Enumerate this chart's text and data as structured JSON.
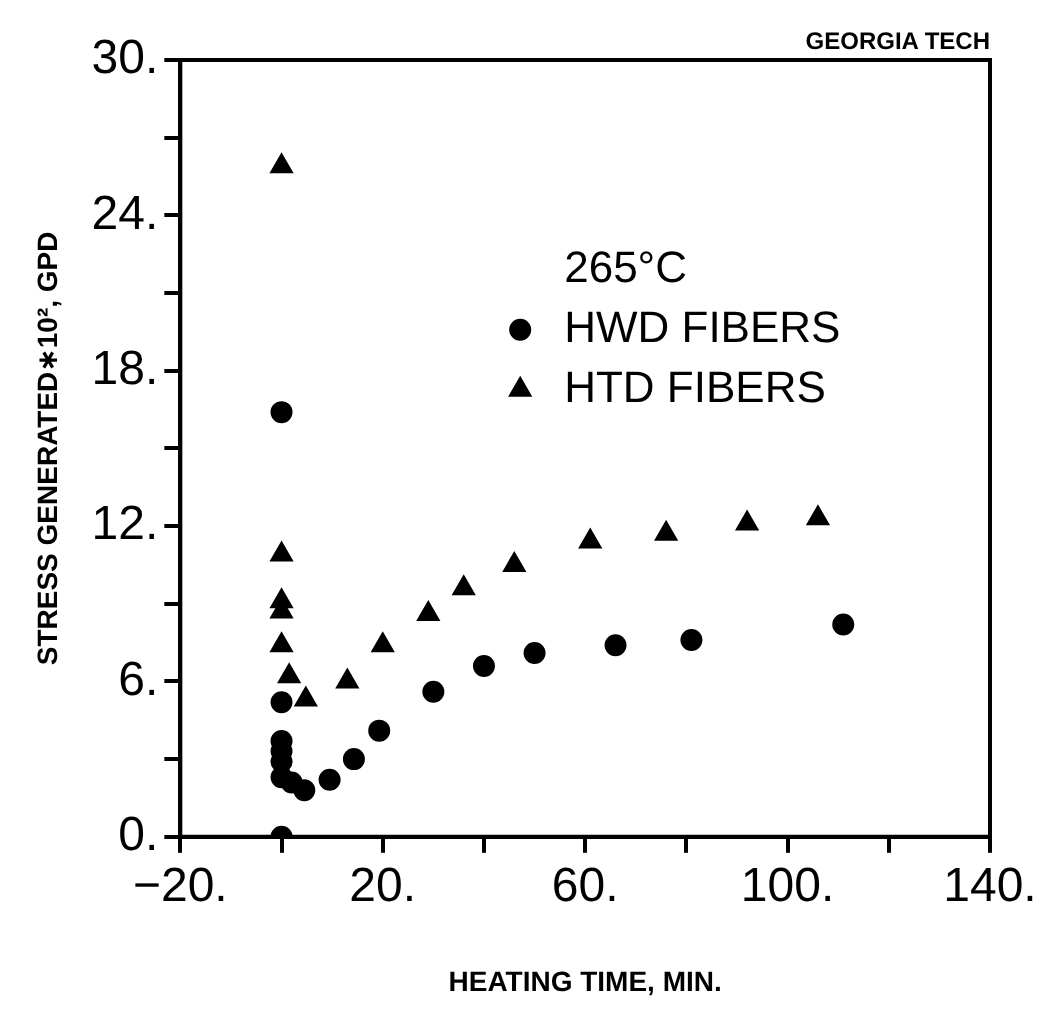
{
  "chart_data": {
    "type": "scatter",
    "xlabel": "HEATING TIME, MIN.",
    "ylabel": "STRESS GENERATED∗10², GPD",
    "legend_title": "265°C",
    "annotations": [
      "GEORGIA TECH"
    ],
    "xlim": [
      -20,
      140
    ],
    "ylim": [
      0,
      30
    ],
    "xticks": [
      {
        "value": -20,
        "label": "−20."
      },
      {
        "value": 0,
        "label": null
      },
      {
        "value": 20,
        "label": "20."
      },
      {
        "value": 40,
        "label": null
      },
      {
        "value": 60,
        "label": "60."
      },
      {
        "value": 80,
        "label": null
      },
      {
        "value": 100,
        "label": "100."
      },
      {
        "value": 120,
        "label": null
      },
      {
        "value": 140,
        "label": "140."
      }
    ],
    "yticks": [
      {
        "value": 0,
        "label": "0."
      },
      {
        "value": 3,
        "label": null
      },
      {
        "value": 6,
        "label": "6."
      },
      {
        "value": 9,
        "label": null
      },
      {
        "value": 12,
        "label": "12."
      },
      {
        "value": 15,
        "label": null
      },
      {
        "value": 18,
        "label": "18."
      },
      {
        "value": 21,
        "label": null
      },
      {
        "value": 24,
        "label": "24."
      },
      {
        "value": 27,
        "label": null
      },
      {
        "value": 30,
        "label": "30."
      }
    ],
    "grid": false,
    "legend": "top right",
    "series": [
      {
        "name": "HWD FIBERS",
        "color": "#000000",
        "marker": "circle",
        "x": [
          0,
          0,
          0,
          0,
          0,
          2,
          4.5,
          9.5,
          14.3,
          19.3,
          30,
          40,
          50,
          66,
          81,
          111
        ],
        "values": [
          5.2,
          3.7,
          3.3,
          2.9,
          2.3,
          2.1,
          1.8,
          2.2,
          3.0,
          4.1,
          5.6,
          6.6,
          7.1,
          7.4,
          7.6,
          8.2
        ]
      },
      {
        "name": "HTD FIBERS",
        "color": "#000000",
        "marker": "triangle",
        "x": [
          0,
          0,
          0,
          0,
          0,
          1.5,
          4.8,
          13,
          20,
          29,
          36,
          46,
          61,
          76,
          92,
          106
        ],
        "values": [
          25.9,
          10.9,
          9.1,
          8.7,
          7.4,
          6.2,
          5.3,
          6.0,
          7.4,
          8.6,
          9.6,
          10.5,
          11.4,
          11.7,
          12.1,
          12.3
        ]
      },
      {
        "color": "#000000",
        "marker": "circle",
        "x": [
          0,
          0
        ],
        "values": [
          16.4,
          0
        ]
      }
    ]
  }
}
